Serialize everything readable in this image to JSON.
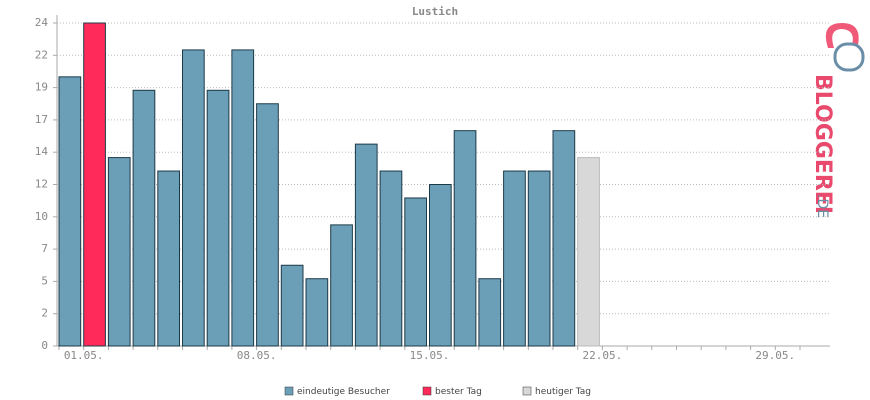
{
  "chart_data": {
    "type": "bar",
    "title": "Lustich",
    "categories": [
      null,
      "01.05.",
      null,
      null,
      null,
      null,
      null,
      null,
      "08.05.",
      null,
      null,
      null,
      null,
      null,
      null,
      "15.05.",
      null,
      null,
      null,
      null,
      null,
      null,
      "22.05.",
      null,
      null,
      null,
      null,
      null,
      null,
      "29.05.",
      null
    ],
    "series": [
      {
        "name": "eindeutige Besucher",
        "color": "#6b9fb8",
        "values": [
          20,
          null,
          14,
          19,
          13,
          22,
          19,
          22,
          18,
          6,
          5,
          9,
          15,
          13,
          11,
          12,
          16,
          5,
          13,
          13,
          16,
          null,
          null,
          null,
          null,
          null,
          null,
          null,
          null,
          null,
          null
        ]
      },
      {
        "name": "bester Tag",
        "color": "#ff2a5a",
        "values": [
          null,
          24,
          null,
          null,
          null,
          null,
          null,
          null,
          null,
          null,
          null,
          null,
          null,
          null,
          null,
          null,
          null,
          null,
          null,
          null,
          null,
          null,
          null,
          null,
          null,
          null,
          null,
          null,
          null,
          null,
          null
        ]
      },
      {
        "name": "heutiger Tag",
        "color": "#d8d8d8",
        "values": [
          null,
          null,
          null,
          null,
          null,
          null,
          null,
          null,
          null,
          null,
          null,
          null,
          null,
          null,
          null,
          null,
          null,
          null,
          null,
          null,
          null,
          14,
          null,
          null,
          null,
          null,
          null,
          null,
          null,
          null,
          null
        ]
      }
    ],
    "ylim": [
      0,
      24
    ],
    "yticks": [
      0,
      {
        "value": 2.4,
        "label": "2"
      },
      {
        "value": 4.8,
        "label": "5"
      },
      {
        "value": 7.2,
        "label": "7"
      },
      {
        "value": 9.6,
        "label": "10"
      },
      {
        "value": 12,
        "label": "12"
      },
      {
        "value": 14.4,
        "label": "14"
      },
      {
        "value": 16.8,
        "label": "17"
      },
      {
        "value": 19.2,
        "label": "19"
      },
      {
        "value": 21.6,
        "label": "22"
      },
      24
    ],
    "grid": true
  },
  "logo": {
    "name": "BLOGGEREI",
    "suffix": ".DE"
  }
}
